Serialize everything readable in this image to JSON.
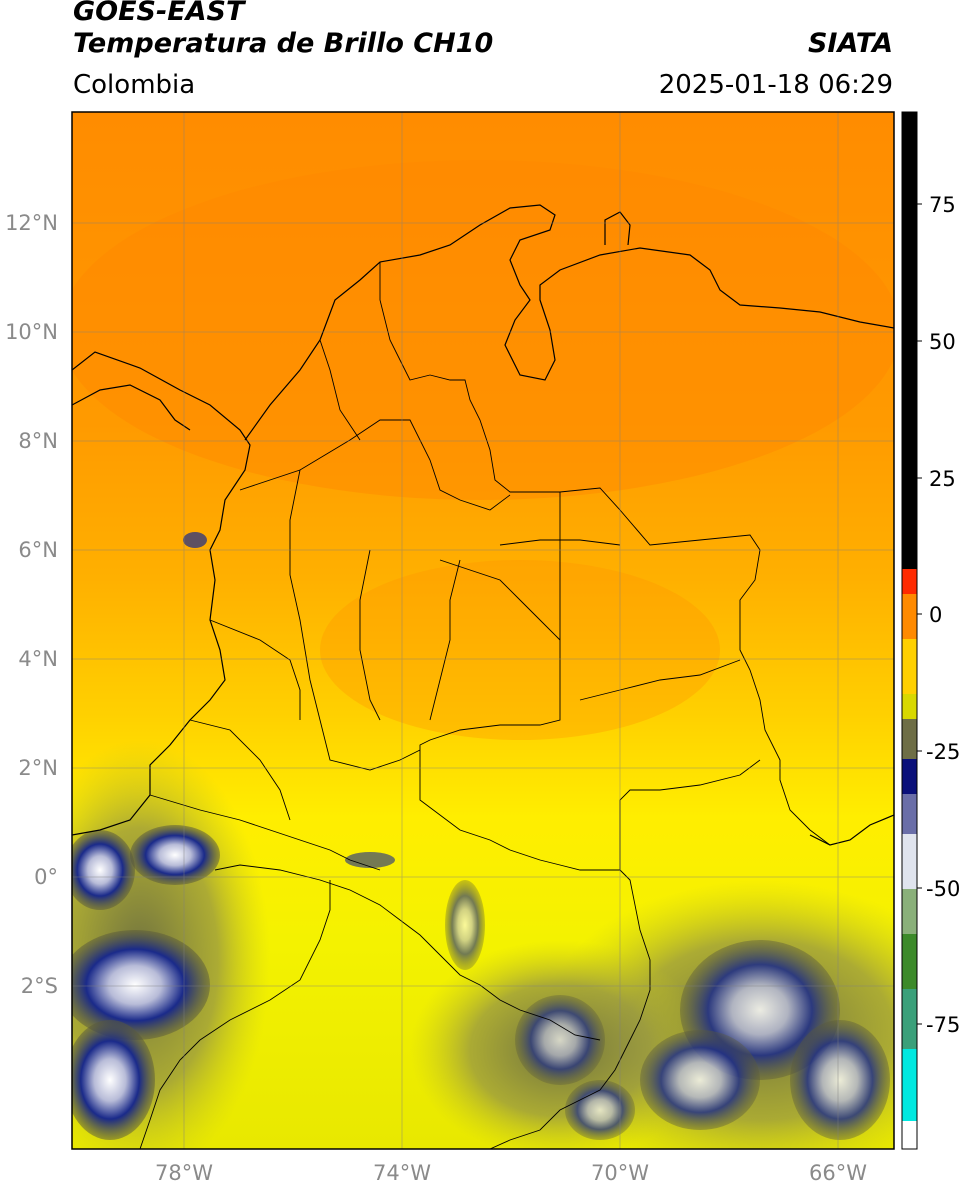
{
  "header": {
    "satellite": "GOES-EAST",
    "product": "Temperatura de Brillo CH10",
    "region": "Colombia",
    "agency": "SIATA",
    "datetime": "2025-01-18 06:29"
  },
  "map": {
    "lon_range": [
      -80,
      -65
    ],
    "lat_range": [
      -5,
      14
    ],
    "lat_ticks": [
      {
        "value": 12,
        "label": "12°N"
      },
      {
        "value": 10,
        "label": "10°N"
      },
      {
        "value": 8,
        "label": "8°N"
      },
      {
        "value": 6,
        "label": "6°N"
      },
      {
        "value": 4,
        "label": "4°N"
      },
      {
        "value": 2,
        "label": "2°N"
      },
      {
        "value": 0,
        "label": "0°"
      },
      {
        "value": -2,
        "label": "2°S"
      }
    ],
    "lon_ticks": [
      {
        "value": -78,
        "label": "78°W"
      },
      {
        "value": -74,
        "label": "74°W"
      },
      {
        "value": -70,
        "label": "70°W"
      },
      {
        "value": -66,
        "label": "66°W"
      }
    ],
    "gridlines": true
  },
  "colorbar": {
    "range": [
      -93,
      90
    ],
    "ticks": [
      {
        "value": 75,
        "label": "75"
      },
      {
        "value": 50,
        "label": "50"
      },
      {
        "value": 25,
        "label": "25"
      },
      {
        "value": 0,
        "label": "0"
      },
      {
        "value": -25,
        "label": "-25"
      },
      {
        "value": -50,
        "label": "-50"
      },
      {
        "value": -75,
        "label": "-75"
      }
    ],
    "colors": {
      "black": "#000000",
      "red": "#ff2a00",
      "orange": "#ff9a00",
      "yellow": "#ffff00",
      "olive": "#8e8e36",
      "navy": "#0a107a",
      "white": "#ffffff",
      "green": "#3c8a2a",
      "cyan": "#00e8e0"
    }
  }
}
